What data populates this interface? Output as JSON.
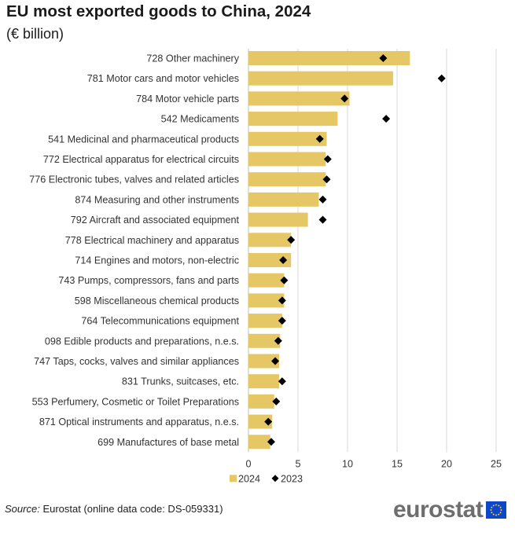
{
  "title": "EU most exported goods to China, 2024",
  "subtitle": "(€ billion)",
  "source_label": "Source:",
  "source_text": "Eurostat (online data code: DS-059331)",
  "logo_text": "eurostat",
  "colors": {
    "bar": "#e6c766",
    "marker": "#000000",
    "grid": "#d9d9d9",
    "axis": "#bfbfbf",
    "flag": "#0e47cb",
    "stars": "#ffd617"
  },
  "chart_data": {
    "type": "bar",
    "orientation": "horizontal",
    "categories": [
      "728 Other machinery",
      "781 Motor cars and motor vehicles",
      "784 Motor vehicle parts",
      "542 Medicaments",
      "541 Medicinal and pharmaceutical products",
      "772 Electrical apparatus for electrical circuits",
      "776 Electronic tubes, valves and related articles",
      "874 Measuring and other instruments",
      "792 Aircraft and associated equipment",
      "778 Electrical machinery and apparatus",
      "714 Engines and motors, non-electric",
      "743 Pumps, compressors, fans and parts",
      "598 Miscellaneous chemical products",
      "764 Telecommunications equipment",
      "098 Edible products and preparations, n.e.s.",
      "747 Taps, cocks, valves and similar appliances",
      "831 Trunks, suitcases, etc.",
      "553 Perfumery, Cosmetic or Toilet Preparations",
      "871 Optical instruments and apparatus, n.e.s.",
      "699 Manufactures of base metal"
    ],
    "series": [
      {
        "name": "2024",
        "type": "bar",
        "values": [
          16.3,
          14.6,
          10.2,
          9.0,
          7.9,
          7.8,
          7.8,
          7.1,
          6.0,
          4.3,
          4.3,
          3.6,
          3.6,
          3.4,
          3.2,
          3.1,
          3.1,
          2.6,
          2.4,
          2.2
        ]
      },
      {
        "name": "2023",
        "type": "marker",
        "values": [
          13.6,
          19.5,
          9.7,
          13.9,
          7.2,
          8.0,
          7.9,
          7.5,
          7.5,
          4.3,
          3.5,
          3.6,
          3.4,
          3.4,
          3.0,
          2.7,
          3.4,
          2.8,
          2.0,
          2.3
        ]
      }
    ],
    "xlim": [
      0,
      25
    ],
    "xticks": [
      0,
      5,
      10,
      15,
      20,
      25
    ],
    "legend": "bottom",
    "grid": true
  }
}
